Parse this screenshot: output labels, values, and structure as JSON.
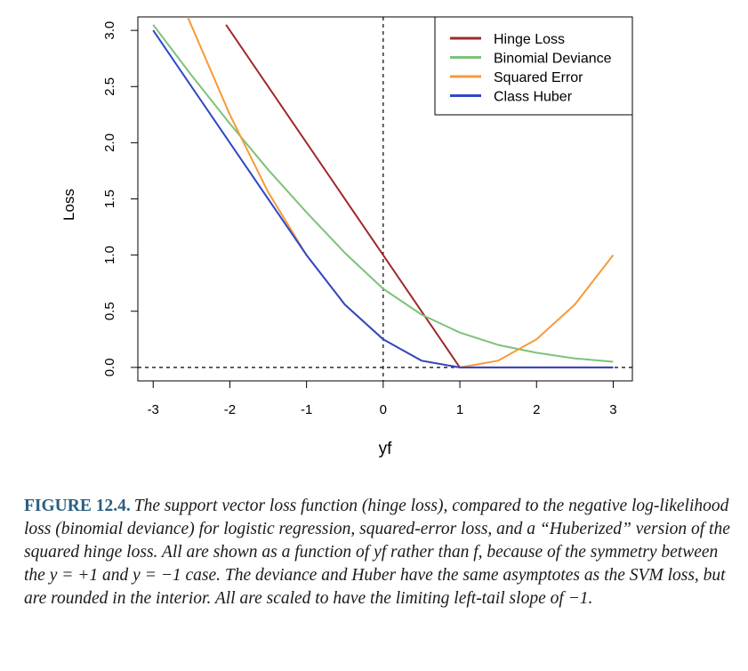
{
  "chart_data": {
    "type": "line",
    "xlabel": "yf",
    "ylabel": "Loss",
    "xlim": [
      -3.2,
      3.25
    ],
    "ylim": [
      -0.12,
      3.12
    ],
    "x_ticks": [
      -3,
      -2,
      -1,
      0,
      1,
      2,
      3
    ],
    "x_tick_labels": [
      "-3",
      "-2",
      "-1",
      "0",
      "1",
      "2",
      "3"
    ],
    "y_ticks": [
      0,
      0.5,
      1,
      1.5,
      2,
      2.5,
      3
    ],
    "y_tick_labels": [
      "0.0",
      "0.5",
      "1.0",
      "1.5",
      "2.0",
      "2.5",
      "3.0"
    ],
    "reference_lines": [
      {
        "orientation": "vertical",
        "x": 0,
        "style": "dashed"
      },
      {
        "orientation": "horizontal",
        "y": 0,
        "style": "dashed"
      }
    ],
    "legend": {
      "position": "top-right",
      "entries": [
        {
          "label": "Hinge Loss",
          "color": "#a0282a"
        },
        {
          "label": "Binomial Deviance",
          "color": "#7dc27a"
        },
        {
          "label": "Squared Error",
          "color": "#f7993a"
        },
        {
          "label": "Class Huber",
          "color": "#2f48c8"
        }
      ]
    },
    "series": [
      {
        "name": "Hinge Loss",
        "color": "#a0282a",
        "x": [
          -2.05,
          1.0,
          3.0
        ],
        "y": [
          3.05,
          0.0,
          0.0
        ]
      },
      {
        "name": "Binomial Deviance",
        "color": "#7dc27a",
        "x": [
          -3.0,
          -2.5,
          -2.0,
          -1.5,
          -1.0,
          -0.5,
          0.0,
          0.5,
          1.0,
          1.5,
          2.0,
          2.5,
          3.0
        ],
        "y": [
          3.05,
          2.6,
          2.17,
          1.76,
          1.38,
          1.02,
          0.7,
          0.47,
          0.31,
          0.2,
          0.13,
          0.08,
          0.05
        ]
      },
      {
        "name": "Squared Error",
        "color": "#f7993a",
        "x": [
          -2.55,
          -2.0,
          -1.5,
          -1.0,
          -0.5,
          0.0,
          0.5,
          1.0,
          1.5,
          2.0,
          2.5,
          3.0
        ],
        "y": [
          3.12,
          2.25,
          1.56,
          1.0,
          0.56,
          0.25,
          0.06,
          0.0,
          0.06,
          0.25,
          0.56,
          1.0
        ]
      },
      {
        "name": "Class Huber",
        "color": "#2f48c8",
        "x": [
          -3.0,
          -2.5,
          -2.0,
          -1.5,
          -1.0,
          -0.5,
          0.0,
          0.5,
          1.0,
          1.5,
          2.0,
          2.5,
          3.0
        ],
        "y": [
          3.0,
          2.5,
          2.0,
          1.5,
          1.0,
          0.56,
          0.25,
          0.06,
          0.0,
          0.0,
          0.0,
          0.0,
          0.0
        ]
      }
    ]
  },
  "caption": {
    "label": "FIGURE 12.4.",
    "text": "The support vector loss function (hinge loss), compared to the negative log-likelihood loss (binomial deviance) for logistic regression, squared-error loss, and a “Huberized” version of the squared hinge loss. All are shown as a function of yf rather than f, because of the symmetry between the y = +1 and y = −1 case. The deviance and Huber have the same asymptotes as the SVM loss, but are rounded in the interior. All are scaled to have the limiting left-tail slope of −1."
  }
}
